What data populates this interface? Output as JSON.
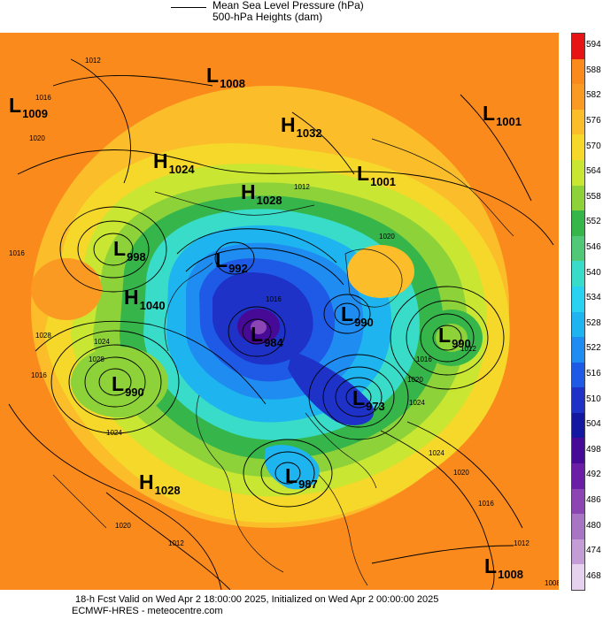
{
  "header": {
    "line1": "Mean Sea Level Pressure (hPa)",
    "line2": "500-hPa Heights (dam)"
  },
  "footer": {
    "line1": "18-h Fcst Valid on Wed Apr  2 18:00:00 2025, Initialized on Wed Apr  2 00:00:00 2025",
    "line2": "ECMWF-HRES  - meteocentre.com"
  },
  "colorbar": {
    "ticks": [
      "594",
      "588",
      "582",
      "576",
      "570",
      "564",
      "558",
      "552",
      "546",
      "540",
      "534",
      "528",
      "522",
      "516",
      "510",
      "504",
      "498",
      "492",
      "486",
      "480",
      "474",
      "468"
    ],
    "colors": [
      "#e61414",
      "#fb8a1c",
      "#fb9a22",
      "#fbbd2a",
      "#f5d82a",
      "#c8e632",
      "#8ed23a",
      "#36b54a",
      "#50c878",
      "#38dcc8",
      "#28d2f0",
      "#1eb4f0",
      "#1e8cf0",
      "#1e5ae6",
      "#1e32c8",
      "#1418a0",
      "#460a96",
      "#6a1ea6",
      "#8c46b4",
      "#a874c4",
      "#c49cd6",
      "#e6d2ee"
    ]
  },
  "centers": [
    {
      "type": "L",
      "value": "1009"
    },
    {
      "type": "L",
      "value": "1008"
    },
    {
      "type": "H",
      "value": "1032"
    },
    {
      "type": "L",
      "value": "1001"
    },
    {
      "type": "H",
      "value": "1024"
    },
    {
      "type": "L",
      "value": "1001"
    },
    {
      "type": "H",
      "value": "1028"
    },
    {
      "type": "L",
      "value": "998"
    },
    {
      "type": "L",
      "value": "992"
    },
    {
      "type": "H",
      "value": "1040"
    },
    {
      "type": "L",
      "value": "990"
    },
    {
      "type": "L",
      "value": "990"
    },
    {
      "type": "L",
      "value": "984"
    },
    {
      "type": "L",
      "value": "990"
    },
    {
      "type": "L",
      "value": "973"
    },
    {
      "type": "L",
      "value": "987"
    },
    {
      "type": "H",
      "value": "1028"
    },
    {
      "type": "L",
      "value": "1008"
    }
  ],
  "isobar_labels": [
    "1012",
    "1016",
    "1020",
    "1012",
    "1016",
    "1024",
    "1028",
    "1012",
    "1016",
    "1020",
    "1024",
    "1016",
    "1020",
    "1024",
    "1020",
    "1016",
    "1012",
    "1008",
    "1012",
    "1020",
    "1016",
    "1024",
    "1028"
  ]
}
